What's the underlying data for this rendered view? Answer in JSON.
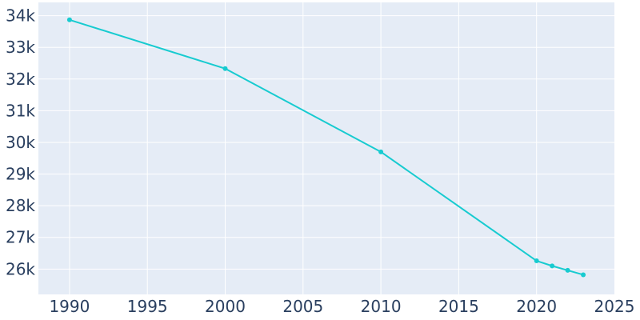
{
  "chart_data": {
    "type": "line",
    "title": "",
    "xlabel": "",
    "ylabel": "",
    "x": [
      1990,
      2000,
      2010,
      2020,
      2021,
      2022,
      2023
    ],
    "series": [
      {
        "values": [
          33870,
          32330,
          29700,
          26260,
          26100,
          25960,
          25820
        ],
        "color": "#17cbd0"
      }
    ],
    "xlim": [
      1988,
      2025
    ],
    "ylim": [
      25200,
      34420
    ],
    "xticks": [
      1990,
      1995,
      2000,
      2005,
      2010,
      2015,
      2020,
      2025
    ],
    "xtick_labels": [
      "1990",
      "1995",
      "2000",
      "2005",
      "2010",
      "2015",
      "2020",
      "2025"
    ],
    "yticks": [
      26000,
      27000,
      28000,
      29000,
      30000,
      31000,
      32000,
      33000,
      34000
    ],
    "ytick_labels": [
      "26k",
      "27k",
      "28k",
      "29k",
      "30k",
      "31k",
      "32k",
      "33k",
      "34k"
    ],
    "grid": true,
    "legend": "none",
    "colors": {
      "plot_background": "#e5ecf6",
      "grid": "#ffffff",
      "tick_text": "#2a3f5f"
    }
  }
}
